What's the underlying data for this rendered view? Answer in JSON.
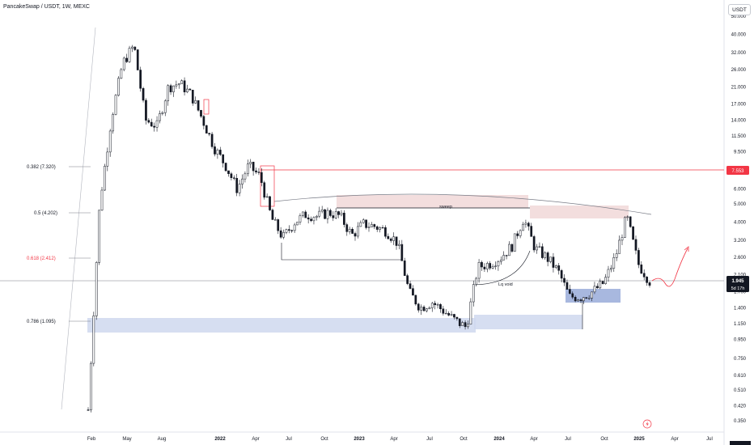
{
  "header": {
    "symbol_title": "PancakeSwap / USDT, 1W, MEXC",
    "currency": "USDT"
  },
  "price_scale": {
    "labels": [
      "50.000",
      "40.000",
      "32.000",
      "26.000",
      "21.000",
      "17.000",
      "14.000",
      "11.500",
      "9.500",
      "7.550",
      "6.000",
      "5.000",
      "4.000",
      "3.200",
      "2.600",
      "2.100",
      "1.700",
      "1.400",
      "1.150",
      "0.950",
      "0.750",
      "0.610",
      "0.510",
      "0.420",
      "0.350"
    ],
    "values": [
      50,
      40,
      32,
      26,
      21,
      17,
      14,
      11.5,
      9.5,
      7.55,
      6,
      5,
      4,
      3.2,
      2.6,
      2.1,
      1.7,
      1.4,
      1.15,
      0.95,
      0.75,
      0.61,
      0.51,
      0.42,
      0.35
    ],
    "scale": "log",
    "range": [
      0.33,
      54
    ]
  },
  "time_axis": {
    "labels": [
      "Feb",
      "May",
      "Aug",
      "2022",
      "Apr",
      "Jul",
      "Oct",
      "2023",
      "Apr",
      "Jul",
      "Oct",
      "2024",
      "Apr",
      "Jul",
      "Oct",
      "2025",
      "Apr",
      "Jul"
    ],
    "bold": [
      false,
      false,
      false,
      true,
      false,
      false,
      false,
      true,
      false,
      false,
      false,
      true,
      false,
      false,
      false,
      true,
      false,
      false
    ]
  },
  "current_price": {
    "value": "1.945",
    "countdown": "5d 17h",
    "color": "#131722"
  },
  "resistance": {
    "value": "7.553",
    "color": "#f23645"
  },
  "fib_levels": [
    {
      "label": "0.382 (7.320)",
      "color": "#131722"
    },
    {
      "label": "0.5 (4.202)",
      "color": "#131722"
    },
    {
      "label": "0.618 (2.412)",
      "color": "#f23645"
    },
    {
      "label": "0.786 (1.095)",
      "color": "#131722"
    }
  ],
  "annotations": {
    "sweep": "sweep",
    "liquidity_void": "Lq void"
  },
  "colors": {
    "candle": "#131722",
    "demand_zone": "#cfd8ee",
    "demand_zone_dark": "#9fb0dc",
    "supply_zone": "#f3dede",
    "projection": "#f23645"
  },
  "chart_data": {
    "type": "candlestick",
    "title": "PancakeSwap / USDT, 1W, MEXC",
    "ylabel": "USDT",
    "yscale": "log",
    "ylim": [
      0.33,
      54
    ],
    "x_range": [
      "2021-01",
      "2025-07"
    ],
    "series_close_approx": [
      [
        "2021-01",
        0.4
      ],
      [
        "2021-02",
        5.0
      ],
      [
        "2021-03",
        14.0
      ],
      [
        "2021-04",
        28.0
      ],
      [
        "2021-05",
        35.0
      ],
      [
        "2021-06",
        14.0
      ],
      [
        "2021-07",
        13.0
      ],
      [
        "2021-08",
        21.0
      ],
      [
        "2021-09",
        22.0
      ],
      [
        "2021-10",
        19.0
      ],
      [
        "2021-11",
        14.0
      ],
      [
        "2021-12",
        10.0
      ],
      [
        "2022-01",
        8.0
      ],
      [
        "2022-02",
        6.0
      ],
      [
        "2022-03",
        8.0
      ],
      [
        "2022-04",
        7.0
      ],
      [
        "2022-05",
        4.2
      ],
      [
        "2022-06",
        3.3
      ],
      [
        "2022-07",
        4.0
      ],
      [
        "2022-08",
        4.4
      ],
      [
        "2022-09",
        4.3
      ],
      [
        "2022-10",
        4.5
      ],
      [
        "2022-11",
        4.3
      ],
      [
        "2022-12",
        3.4
      ],
      [
        "2023-01",
        3.9
      ],
      [
        "2023-02",
        3.8
      ],
      [
        "2023-03",
        3.6
      ],
      [
        "2023-04",
        3.1
      ],
      [
        "2023-05",
        1.7
      ],
      [
        "2023-06",
        1.4
      ],
      [
        "2023-07",
        1.5
      ],
      [
        "2023-08",
        1.35
      ],
      [
        "2023-09",
        1.2
      ],
      [
        "2023-10",
        1.1
      ],
      [
        "2023-11",
        2.3
      ],
      [
        "2023-12",
        2.4
      ],
      [
        "2024-01",
        2.6
      ],
      [
        "2024-02",
        3.0
      ],
      [
        "2024-03",
        4.2
      ],
      [
        "2024-04",
        2.9
      ],
      [
        "2024-05",
        2.6
      ],
      [
        "2024-06",
        2.2
      ],
      [
        "2024-07",
        1.6
      ],
      [
        "2024-08",
        1.6
      ],
      [
        "2024-09",
        1.7
      ],
      [
        "2024-10",
        1.9
      ],
      [
        "2024-11",
        2.6
      ],
      [
        "2024-12",
        4.3
      ],
      [
        "2025-01",
        2.4
      ],
      [
        "2025-02",
        1.945
      ]
    ],
    "horizontal_levels": [
      7.553
    ],
    "fib_retracement": {
      "0.382": 7.32,
      "0.5": 4.202,
      "0.618": 2.412,
      "0.786": 1.095
    },
    "zones": [
      {
        "kind": "demand",
        "price_range": [
          1.07,
          1.22
        ]
      },
      {
        "kind": "demand",
        "price_range": [
          1.45,
          1.82
        ]
      },
      {
        "kind": "supply",
        "price_range": [
          4.35,
          5.0
        ]
      }
    ],
    "annotations": [
      "sweep",
      "Lq void"
    ]
  }
}
